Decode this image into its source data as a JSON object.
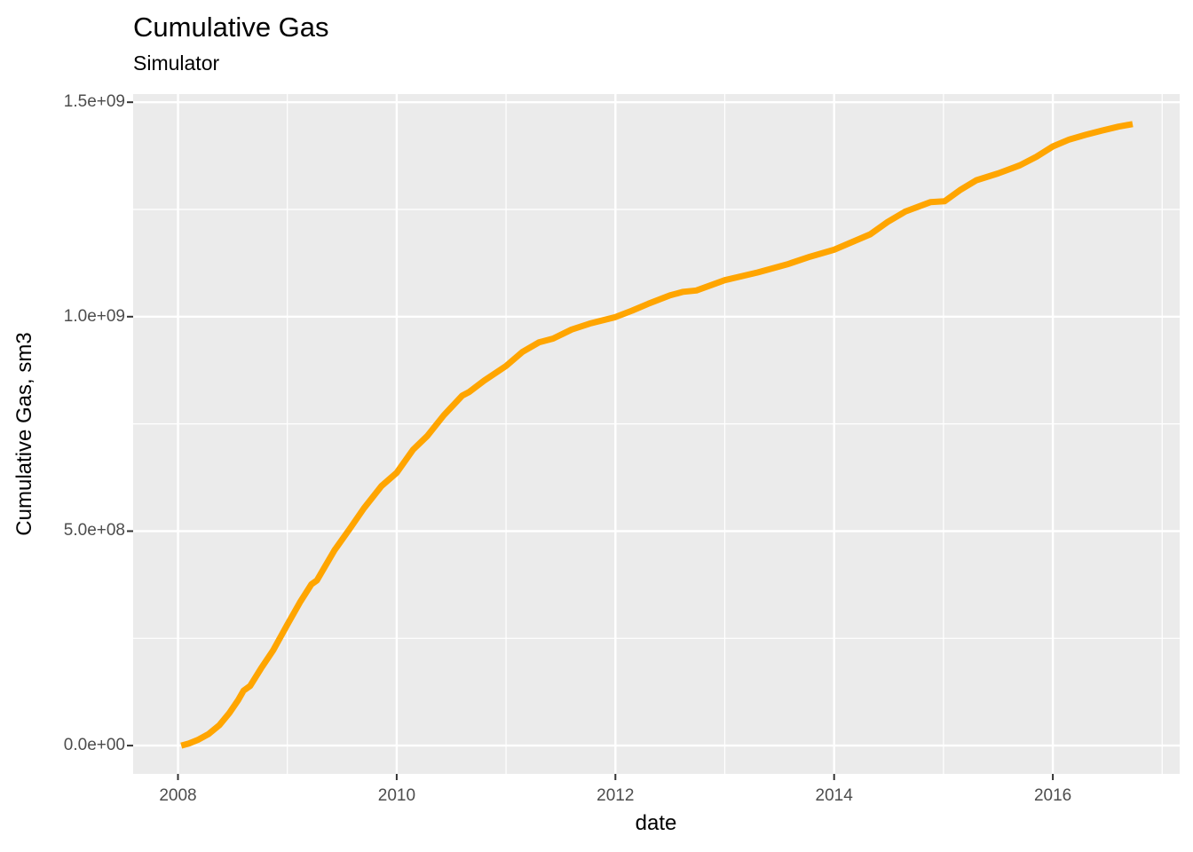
{
  "title": "Cumulative Gas",
  "subtitle": "Simulator",
  "colors": {
    "line": "#FFA500",
    "panel_background": "#EBEBEB",
    "gridline": "#FFFFFF",
    "tick_mark": "#333333",
    "tick_text": "#4D4D4D",
    "title_text": "#000000"
  },
  "chart_data": {
    "type": "line",
    "title": "Cumulative Gas",
    "subtitle": "Simulator",
    "xlabel": "date",
    "ylabel": "Cumulative Gas, sm3",
    "legend": "none",
    "grid": true,
    "panel_bg": "#EBEBEB",
    "grid_color": "#FFFFFF",
    "xlim": [
      2007.59,
      2017.16
    ],
    "ylim": [
      -66000000,
      1519000000
    ],
    "x_major_ticks": [
      {
        "value": 2008,
        "label": "2008"
      },
      {
        "value": 2010,
        "label": "2010"
      },
      {
        "value": 2012,
        "label": "2012"
      },
      {
        "value": 2014,
        "label": "2014"
      },
      {
        "value": 2016,
        "label": "2016"
      }
    ],
    "x_minor_ticks": [
      2009,
      2011,
      2013,
      2015,
      2017
    ],
    "y_major_ticks": [
      {
        "value": 0,
        "label": "0.0e+00"
      },
      {
        "value": 500000000.0,
        "label": "5.0e+08"
      },
      {
        "value": 1000000000.0,
        "label": "1.0e+09"
      },
      {
        "value": 1500000000.0,
        "label": "1.5e+09"
      }
    ],
    "y_minor_ticks": [
      250000000.0,
      750000000.0,
      1250000000.0
    ],
    "series": [
      {
        "name": "Simulator",
        "color": "#FFA500",
        "points": [
          [
            2008.03,
            0
          ],
          [
            2008.1,
            5000000.0
          ],
          [
            2008.18,
            13000000.0
          ],
          [
            2008.28,
            27000000.0
          ],
          [
            2008.38,
            48000000.0
          ],
          [
            2008.47,
            76000000.0
          ],
          [
            2008.55,
            106000000.0
          ],
          [
            2008.6,
            128000000.0
          ],
          [
            2008.66,
            139000000.0
          ],
          [
            2008.76,
            180000000.0
          ],
          [
            2008.87,
            222000000.0
          ],
          [
            2009.0,
            282000000.0
          ],
          [
            2009.12,
            336000000.0
          ],
          [
            2009.22,
            376000000.0
          ],
          [
            2009.27,
            385000000.0
          ],
          [
            2009.43,
            455000000.0
          ],
          [
            2009.57,
            505000000.0
          ],
          [
            2009.7,
            553000000.0
          ],
          [
            2009.86,
            605000000.0
          ],
          [
            2010.0,
            636000000.0
          ],
          [
            2010.15,
            690000000.0
          ],
          [
            2010.28,
            722000000.0
          ],
          [
            2010.43,
            770000000.0
          ],
          [
            2010.6,
            816000000.0
          ],
          [
            2010.66,
            824000000.0
          ],
          [
            2010.8,
            851000000.0
          ],
          [
            2011.0,
            885000000.0
          ],
          [
            2011.15,
            918000000.0
          ],
          [
            2011.3,
            940000000.0
          ],
          [
            2011.43,
            949000000.0
          ],
          [
            2011.6,
            970000000.0
          ],
          [
            2011.78,
            985000000.0
          ],
          [
            2012.0,
            999000000.0
          ],
          [
            2012.15,
            1014000000.0
          ],
          [
            2012.3,
            1030000000.0
          ],
          [
            2012.5,
            1050000000.0
          ],
          [
            2012.62,
            1058000000.0
          ],
          [
            2012.74,
            1061000000.0
          ],
          [
            2013.0,
            1085000000.0
          ],
          [
            2013.3,
            1103000000.0
          ],
          [
            2013.57,
            1122000000.0
          ],
          [
            2013.78,
            1140000000.0
          ],
          [
            2014.0,
            1156000000.0
          ],
          [
            2014.33,
            1192000000.0
          ],
          [
            2014.49,
            1221000000.0
          ],
          [
            2014.65,
            1245000000.0
          ],
          [
            2014.88,
            1267000000.0
          ],
          [
            2015.01,
            1269000000.0
          ],
          [
            2015.15,
            1295000000.0
          ],
          [
            2015.3,
            1318000000.0
          ],
          [
            2015.5,
            1334000000.0
          ],
          [
            2015.7,
            1353000000.0
          ],
          [
            2015.85,
            1373000000.0
          ],
          [
            2016.0,
            1397000000.0
          ],
          [
            2016.15,
            1413000000.0
          ],
          [
            2016.3,
            1424000000.0
          ],
          [
            2016.45,
            1434000000.0
          ],
          [
            2016.6,
            1443000000.0
          ],
          [
            2016.73,
            1449000000.0
          ]
        ]
      }
    ]
  }
}
